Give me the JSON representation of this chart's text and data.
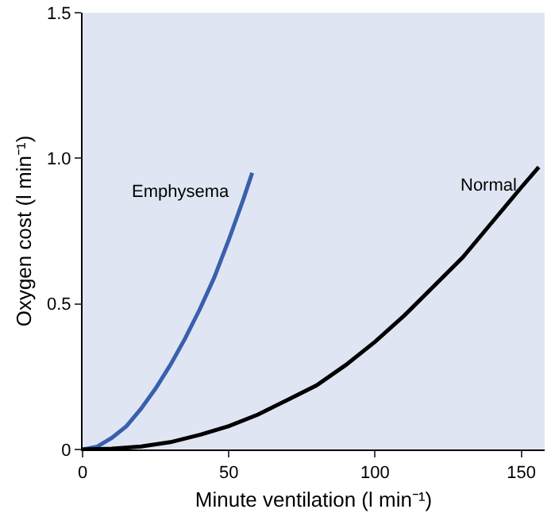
{
  "chart_data": {
    "type": "line",
    "xlabel": "Minute ventilation (l min⁻¹)",
    "ylabel": "Oxygen cost (l min⁻¹)",
    "xlim": [
      0,
      158
    ],
    "xticks": [
      0,
      50,
      100,
      150
    ],
    "ylim": [
      0,
      1.5
    ],
    "yticks": [
      0,
      0.5,
      {
        "value": 1.0,
        "label": "1.0"
      },
      {
        "value": 1.5,
        "label": "1.5"
      }
    ],
    "grid": false,
    "legend": false,
    "marker": "none",
    "line_style": "solid",
    "series": [
      {
        "name": "Emphysema",
        "color": "#3a5fae",
        "x": [
          0,
          5,
          10,
          15,
          20,
          25,
          30,
          35,
          40,
          45,
          50,
          55,
          58
        ],
        "values": [
          0,
          0.01,
          0.04,
          0.08,
          0.14,
          0.21,
          0.29,
          0.38,
          0.48,
          0.59,
          0.72,
          0.86,
          0.95
        ]
      },
      {
        "name": "Normal",
        "color": "#000000",
        "x": [
          0,
          10,
          20,
          30,
          40,
          50,
          60,
          70,
          80,
          90,
          100,
          110,
          120,
          130,
          140,
          150,
          156
        ],
        "values": [
          0,
          0.003,
          0.01,
          0.025,
          0.05,
          0.08,
          0.12,
          0.17,
          0.22,
          0.29,
          0.37,
          0.46,
          0.56,
          0.66,
          0.78,
          0.9,
          0.97
        ]
      }
    ]
  }
}
